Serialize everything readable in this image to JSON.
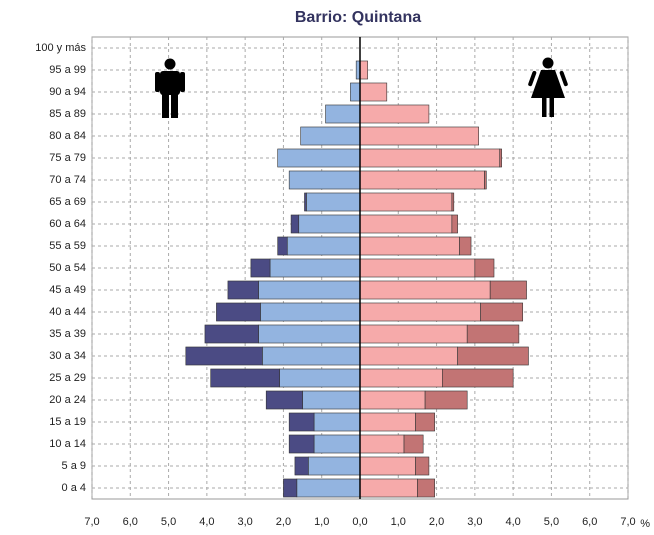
{
  "chart_data": {
    "type": "pyramid",
    "title": "Barrio: Quintana",
    "x_label": "%",
    "categories": [
      "0 a 4",
      "5 a 9",
      "10 a 14",
      "15 a 19",
      "20 a 24",
      "25 a 29",
      "30 a 34",
      "35 a 39",
      "40 a 44",
      "45 a 49",
      "50 a 54",
      "55 a 59",
      "60 a 64",
      "65 a 69",
      "70 a 74",
      "75 a 79",
      "80 a 84",
      "85 a 89",
      "90 a 94",
      "95 a 99",
      "100 y más"
    ],
    "series": [
      {
        "color": "#93b4e0",
        "values": [
          -1.65,
          -1.35,
          -1.2,
          -1.2,
          -1.5,
          -2.1,
          -2.55,
          -2.65,
          -2.6,
          -2.65,
          -2.35,
          -1.9,
          -1.6,
          -1.4,
          -1.85,
          -2.15,
          -1.55,
          -0.9,
          -0.25,
          -0.1,
          0
        ]
      },
      {
        "color": "#4b4b84",
        "values": [
          -0.35,
          -0.35,
          -0.65,
          -0.65,
          -0.95,
          -1.8,
          -2.0,
          -1.4,
          -1.15,
          -0.8,
          -0.5,
          -0.25,
          -0.2,
          -0.05,
          0,
          0,
          0,
          0,
          0,
          0,
          0
        ]
      },
      {
        "color": "#f6aaaa",
        "values": [
          1.5,
          1.45,
          1.15,
          1.45,
          1.7,
          2.15,
          2.55,
          2.8,
          3.15,
          3.4,
          3.0,
          2.6,
          2.4,
          2.4,
          3.25,
          3.65,
          3.1,
          1.8,
          0.7,
          0.2,
          0
        ]
      },
      {
        "color": "#c27474",
        "values": [
          0.45,
          0.35,
          0.5,
          0.5,
          1.1,
          1.85,
          1.85,
          1.35,
          1.1,
          0.95,
          0.5,
          0.3,
          0.15,
          0.05,
          0.05,
          0.05,
          0,
          0,
          0,
          0,
          0
        ]
      }
    ],
    "xlim": [
      -7,
      7
    ],
    "xticks": [
      {
        "value": -7,
        "label": "7,0"
      },
      {
        "value": -6,
        "label": "6,0"
      },
      {
        "value": -5,
        "label": "5,0"
      },
      {
        "value": -4,
        "label": "4,0"
      },
      {
        "value": -3,
        "label": "3,0"
      },
      {
        "value": -2,
        "label": "2,0"
      },
      {
        "value": -1,
        "label": "1,0"
      },
      {
        "value": 0,
        "label": "0,0"
      },
      {
        "value": 1,
        "label": "1,0"
      },
      {
        "value": 2,
        "label": "2,0"
      },
      {
        "value": 3,
        "label": "3,0"
      },
      {
        "value": 4,
        "label": "4,0"
      },
      {
        "value": 5,
        "label": "5,0"
      },
      {
        "value": 6,
        "label": "6,0"
      },
      {
        "value": 7,
        "label": "7,0"
      }
    ],
    "grid": true
  }
}
